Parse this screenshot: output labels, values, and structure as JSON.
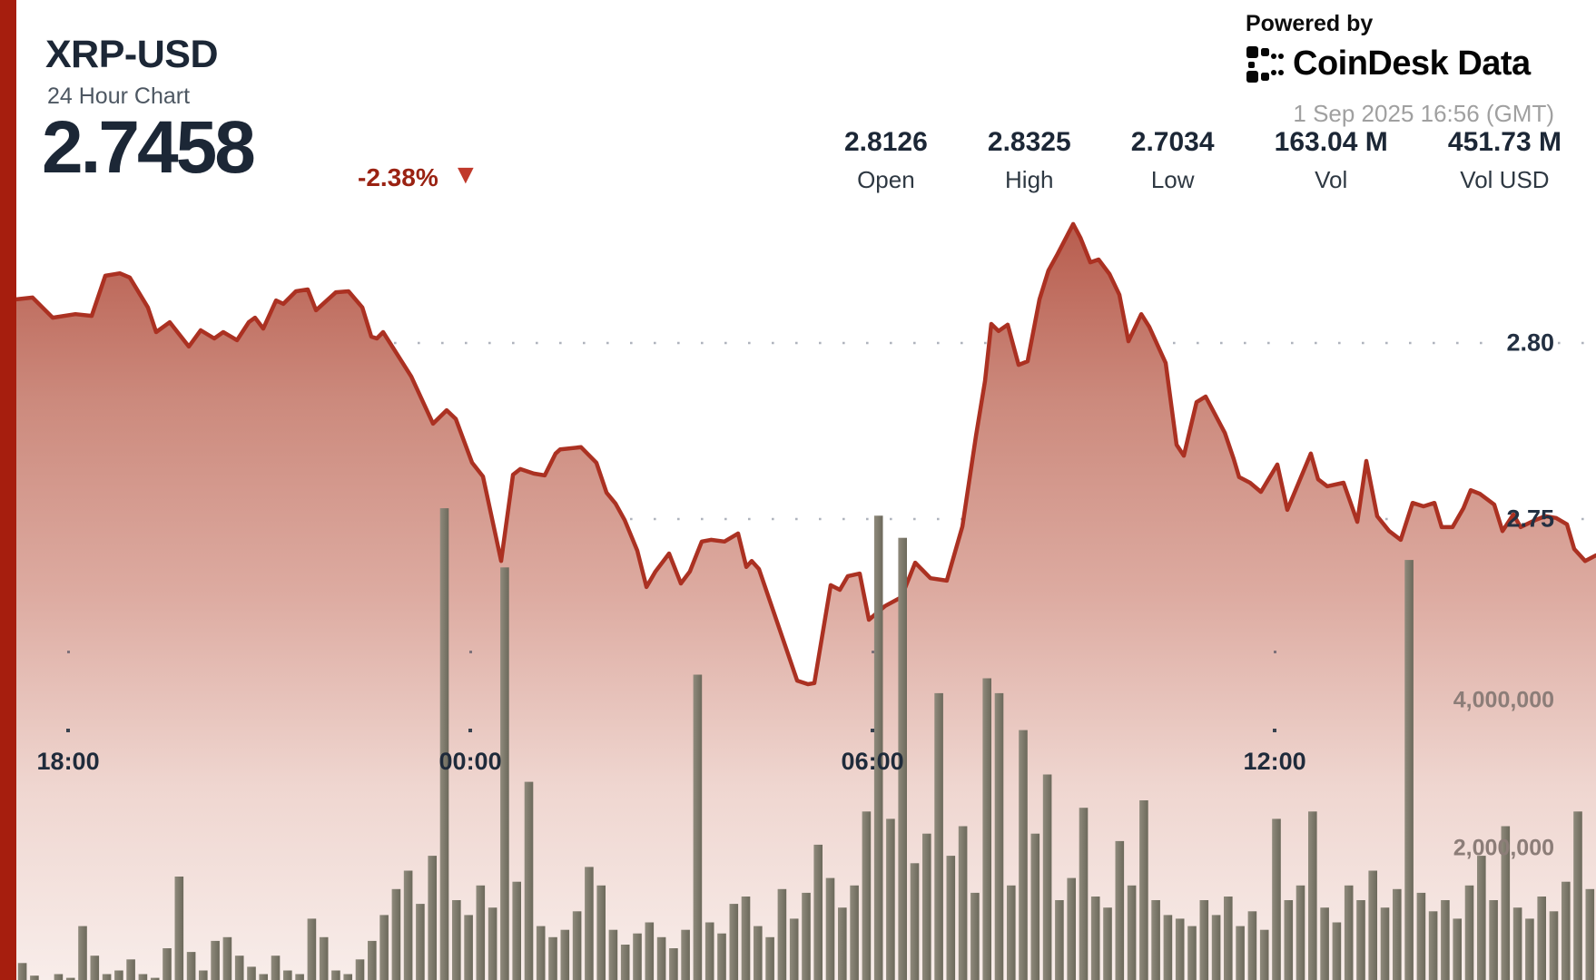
{
  "header": {
    "symbol": "XRP-USD",
    "subtitle": "24 Hour Chart",
    "price": "2.7458",
    "change": "-2.38%",
    "down_triangle": "▼"
  },
  "stats": [
    {
      "value": "2.8126",
      "label": "Open"
    },
    {
      "value": "2.8325",
      "label": "High"
    },
    {
      "value": "2.7034",
      "label": "Low"
    },
    {
      "value": "163.04 M",
      "label": "Vol"
    },
    {
      "value": "451.73 M",
      "label": "Vol USD"
    }
  ],
  "branding": {
    "powered_by": "Powered by",
    "brand": "CoinDesk Data",
    "timestamp": "1 Sep 2025 16:56 (GMT)"
  },
  "colors": {
    "accent_red": "#a61e0e",
    "line": "#ab3122",
    "bar_dark": "#6c695b",
    "bar_light": "#8f8a7c",
    "text_dark": "#1c2736",
    "change_red": "#9a2212",
    "tri_red": "#c0392b",
    "muted": "#8c7d78",
    "timestamp": "#a0a0a0",
    "grid_price": "#6d7686",
    "grid_vol": "#8b817b"
  },
  "fill_gradient": [
    "#b6594a",
    "#cc8a7d",
    "#ddaba1",
    "#efd6d0",
    "#f8edea"
  ],
  "axes": {
    "time_ticks": [
      {
        "label": "18:00",
        "f": 0.0328
      },
      {
        "label": "00:00",
        "f": 0.2874
      },
      {
        "label": "06:00",
        "f": 0.542
      },
      {
        "label": "12:00",
        "f": 0.7966
      }
    ],
    "price_gridlines": [
      {
        "label": "2.80",
        "value": 2.8
      },
      {
        "label": "2.75",
        "value": 2.75
      }
    ],
    "volume_gridlines": [
      {
        "label": "4,000,000",
        "value": 4.0
      },
      {
        "label": "2,000,000",
        "value": 2.0
      }
    ]
  },
  "chart_data": {
    "type": "area",
    "title": "XRP-USD 24 Hour Chart",
    "x_domain": "24 hours ending 1 Sep 2025 16:56 GMT (f = fraction of window)",
    "price_axis_range": [
      2.695,
      2.845
    ],
    "volume_axis_range_millions": [
      0,
      6.9
    ],
    "open": 2.8126,
    "high": 2.8325,
    "low": 2.7034,
    "volume_total": "163.04 M",
    "volume_usd_total": "451.73 M",
    "legend": "none",
    "grid": "dotted horizontal",
    "price_series": {
      "name": "XRP-USD price",
      "points": [
        [
          0.0,
          2.8124
        ],
        [
          0.0103,
          2.8129
        ],
        [
          0.023,
          2.8072
        ],
        [
          0.0374,
          2.8082
        ],
        [
          0.0477,
          2.8077
        ],
        [
          0.0563,
          2.8191
        ],
        [
          0.0655,
          2.8198
        ],
        [
          0.0718,
          2.8186
        ],
        [
          0.0833,
          2.8101
        ],
        [
          0.0885,
          2.8031
        ],
        [
          0.0971,
          2.8059
        ],
        [
          0.1029,
          2.8026
        ],
        [
          0.1092,
          2.799
        ],
        [
          0.1167,
          2.8036
        ],
        [
          0.1253,
          2.8013
        ],
        [
          0.131,
          2.8031
        ],
        [
          0.1397,
          2.8008
        ],
        [
          0.1471,
          2.8059
        ],
        [
          0.1511,
          2.8072
        ],
        [
          0.1563,
          2.8041
        ],
        [
          0.1644,
          2.8121
        ],
        [
          0.169,
          2.8111
        ],
        [
          0.177,
          2.8147
        ],
        [
          0.1845,
          2.8152
        ],
        [
          0.1897,
          2.8093
        ],
        [
          0.2023,
          2.8144
        ],
        [
          0.2103,
          2.8147
        ],
        [
          0.219,
          2.8101
        ],
        [
          0.2247,
          2.8018
        ],
        [
          0.2282,
          2.8013
        ],
        [
          0.2322,
          2.8031
        ],
        [
          0.25,
          2.7905
        ],
        [
          0.2638,
          2.7771
        ],
        [
          0.2724,
          2.7809
        ],
        [
          0.2782,
          2.7784
        ],
        [
          0.2885,
          2.766
        ],
        [
          0.2954,
          2.7621
        ],
        [
          0.3069,
          2.7381
        ],
        [
          0.3144,
          2.7626
        ],
        [
          0.319,
          2.7642
        ],
        [
          0.3276,
          2.7629
        ],
        [
          0.3345,
          2.7624
        ],
        [
          0.3414,
          2.7686
        ],
        [
          0.3443,
          2.7698
        ],
        [
          0.3575,
          2.7704
        ],
        [
          0.3672,
          2.766
        ],
        [
          0.3736,
          2.7575
        ],
        [
          0.3793,
          2.7544
        ],
        [
          0.3851,
          2.7497
        ],
        [
          0.3931,
          2.741
        ],
        [
          0.3989,
          2.7307
        ],
        [
          0.4046,
          2.7351
        ],
        [
          0.4132,
          2.7402
        ],
        [
          0.4207,
          2.7317
        ],
        [
          0.4264,
          2.7351
        ],
        [
          0.4339,
          2.7436
        ],
        [
          0.4397,
          2.7441
        ],
        [
          0.4483,
          2.7436
        ],
        [
          0.4569,
          2.7459
        ],
        [
          0.4621,
          2.7364
        ],
        [
          0.4655,
          2.7381
        ],
        [
          0.4701,
          2.7358
        ],
        [
          0.4943,
          2.7041
        ],
        [
          0.5011,
          2.7031
        ],
        [
          0.5052,
          2.7034
        ],
        [
          0.5155,
          2.7312
        ],
        [
          0.5213,
          2.7299
        ],
        [
          0.5264,
          2.7338
        ],
        [
          0.5339,
          2.7345
        ],
        [
          0.5397,
          2.7214
        ],
        [
          0.55,
          2.7253
        ],
        [
          0.5603,
          2.7278
        ],
        [
          0.569,
          2.7376
        ],
        [
          0.5787,
          2.7332
        ],
        [
          0.589,
          2.7325
        ],
        [
          0.5989,
          2.7479
        ],
        [
          0.6075,
          2.7737
        ],
        [
          0.6132,
          2.7892
        ],
        [
          0.6172,
          2.8054
        ],
        [
          0.6218,
          2.8034
        ],
        [
          0.6276,
          2.8052
        ],
        [
          0.6345,
          2.7938
        ],
        [
          0.6402,
          2.7948
        ],
        [
          0.6477,
          2.8124
        ],
        [
          0.6534,
          2.8206
        ],
        [
          0.6592,
          2.8253
        ],
        [
          0.669,
          2.8338
        ],
        [
          0.6736,
          2.8299
        ],
        [
          0.6799,
          2.8229
        ],
        [
          0.6851,
          2.8237
        ],
        [
          0.692,
          2.8196
        ],
        [
          0.6983,
          2.8137
        ],
        [
          0.704,
          2.8005
        ],
        [
          0.7121,
          2.8082
        ],
        [
          0.7172,
          2.8046
        ],
        [
          0.7276,
          2.7943
        ],
        [
          0.7345,
          2.7711
        ],
        [
          0.7391,
          2.768
        ],
        [
          0.7471,
          2.7832
        ],
        [
          0.7529,
          2.7848
        ],
        [
          0.765,
          2.7745
        ],
        [
          0.7707,
          2.767
        ],
        [
          0.7741,
          2.7619
        ],
        [
          0.781,
          2.7603
        ],
        [
          0.7879,
          2.7577
        ],
        [
          0.7983,
          2.7655
        ],
        [
          0.8046,
          2.7526
        ],
        [
          0.8195,
          2.7686
        ],
        [
          0.8241,
          2.7613
        ],
        [
          0.8299,
          2.7593
        ],
        [
          0.8402,
          2.7603
        ],
        [
          0.8489,
          2.7492
        ],
        [
          0.8546,
          2.7665
        ],
        [
          0.8615,
          2.7508
        ],
        [
          0.869,
          2.7466
        ],
        [
          0.8764,
          2.7441
        ],
        [
          0.8839,
          2.7546
        ],
        [
          0.8908,
          2.7536
        ],
        [
          0.8977,
          2.7546
        ],
        [
          0.9023,
          2.7477
        ],
        [
          0.9092,
          2.7477
        ],
        [
          0.9161,
          2.7531
        ],
        [
          0.9207,
          2.7582
        ],
        [
          0.9264,
          2.7572
        ],
        [
          0.9356,
          2.7541
        ],
        [
          0.9408,
          2.7466
        ],
        [
          0.9477,
          2.7513
        ],
        [
          0.9523,
          2.7477
        ],
        [
          0.9615,
          2.7497
        ],
        [
          0.9678,
          2.7508
        ],
        [
          0.9747,
          2.7503
        ],
        [
          0.9816,
          2.7485
        ],
        [
          0.9862,
          2.7415
        ],
        [
          0.9931,
          2.7381
        ],
        [
          1.0,
          2.7397
        ]
      ]
    },
    "volume_series": {
      "name": "Volume",
      "unit": "millions",
      "values": [
        0.45,
        0.28,
        0.2,
        0.3,
        0.25,
        0.95,
        0.55,
        0.3,
        0.35,
        0.5,
        0.3,
        0.25,
        0.65,
        1.62,
        0.6,
        0.35,
        0.75,
        0.8,
        0.55,
        0.4,
        0.3,
        0.55,
        0.35,
        0.3,
        1.05,
        0.8,
        0.35,
        0.3,
        0.5,
        0.75,
        1.1,
        1.45,
        1.7,
        1.25,
        1.9,
        6.6,
        1.3,
        1.1,
        1.5,
        1.2,
        5.8,
        1.55,
        2.9,
        0.95,
        0.8,
        0.9,
        1.15,
        1.75,
        1.5,
        0.9,
        0.7,
        0.85,
        1.0,
        0.8,
        0.65,
        0.9,
        4.35,
        1.0,
        0.85,
        1.25,
        1.35,
        0.95,
        0.8,
        1.45,
        1.05,
        1.4,
        2.05,
        1.6,
        1.2,
        1.5,
        2.5,
        6.5,
        2.4,
        6.2,
        1.8,
        2.2,
        4.1,
        1.9,
        2.3,
        1.4,
        4.3,
        4.1,
        1.5,
        3.6,
        2.2,
        3.0,
        1.3,
        1.6,
        2.55,
        1.35,
        1.2,
        2.1,
        1.5,
        2.65,
        1.3,
        1.1,
        1.05,
        0.95,
        1.3,
        1.1,
        1.35,
        0.95,
        1.15,
        0.9,
        2.4,
        1.3,
        1.5,
        2.5,
        1.2,
        1.0,
        1.5,
        1.3,
        1.7,
        1.2,
        1.45,
        5.9,
        1.4,
        1.15,
        1.3,
        1.05,
        1.5,
        1.9,
        1.3,
        2.3,
        1.2,
        1.05,
        1.35,
        1.15,
        1.55,
        2.5,
        1.45
      ]
    }
  }
}
